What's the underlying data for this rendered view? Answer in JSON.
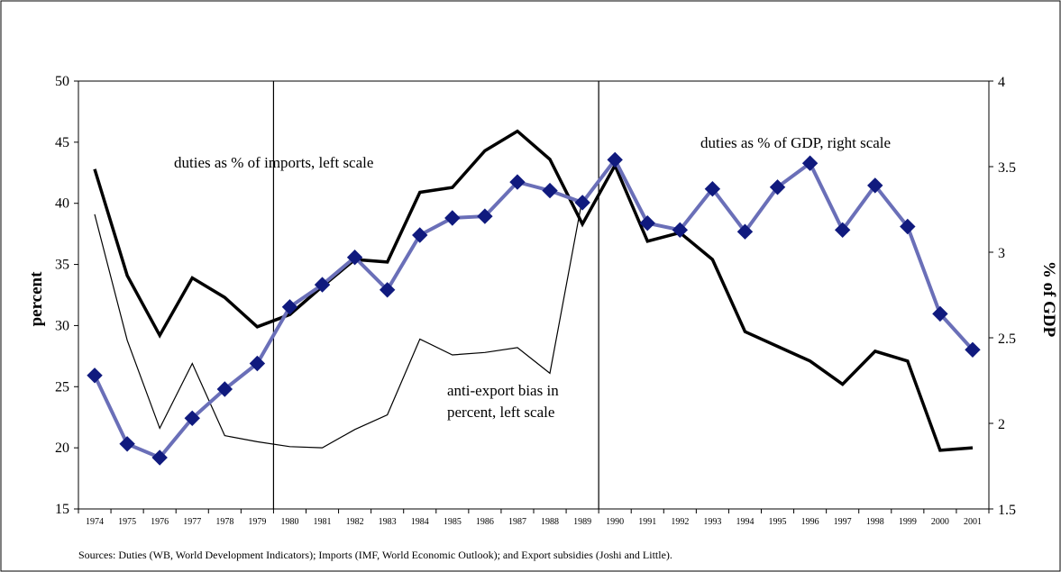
{
  "chart_data": {
    "type": "line",
    "categories": [
      "1974",
      "1975",
      "1976",
      "1977",
      "1978",
      "1979",
      "1980",
      "1981",
      "1982",
      "1983",
      "1984",
      "1985",
      "1986",
      "1987",
      "1988",
      "1989",
      "1990",
      "1991",
      "1992",
      "1993",
      "1994",
      "1995",
      "1996",
      "1997",
      "1998",
      "1999",
      "2000",
      "2001"
    ],
    "series": [
      {
        "axis": "left",
        "style": "thick-black",
        "values": [
          42.8,
          34.1,
          29.2,
          33.9,
          32.3,
          29.9,
          30.9,
          33.2,
          35.4,
          35.2,
          40.9,
          41.3,
          44.3,
          45.9,
          43.6,
          38.3,
          43.1,
          36.9,
          37.6,
          35.4,
          29.5,
          28.3,
          27.1,
          25.2,
          27.9,
          27.1,
          19.8,
          20.0
        ]
      },
      {
        "axis": "left",
        "style": "thin-black",
        "values": [
          39.1,
          28.8,
          21.6,
          26.9,
          21.0,
          20.5,
          20.1,
          20.0,
          21.5,
          22.7,
          28.9,
          27.6,
          27.8,
          28.2,
          26.1,
          40.4,
          null,
          null,
          null,
          null,
          null,
          null,
          null,
          null,
          null,
          null,
          null,
          null
        ]
      },
      {
        "axis": "right",
        "style": "blue-diamond",
        "values": [
          2.28,
          1.88,
          1.8,
          2.03,
          2.2,
          2.35,
          2.68,
          2.81,
          2.97,
          2.78,
          3.1,
          3.2,
          3.21,
          3.41,
          3.36,
          3.29,
          3.54,
          3.17,
          3.13,
          3.37,
          3.12,
          3.38,
          3.52,
          3.13,
          3.39,
          3.15,
          2.64,
          2.43
        ]
      }
    ],
    "ylim_left": [
      15,
      50
    ],
    "yticks_left": [
      "15",
      "20",
      "25",
      "30",
      "35",
      "40",
      "45",
      "50"
    ],
    "ylim_right": [
      1.5,
      4
    ],
    "yticks_right": [
      "1.5",
      "2",
      "2.5",
      "3",
      "3.5",
      "4"
    ],
    "ylabel_left": "percent",
    "ylabel_right": "% of GDP",
    "vertical_markers": [
      "1979",
      "1989"
    ],
    "grid": false,
    "colors": {
      "thick": "#000000",
      "thin": "#000000",
      "blue": "#6a6fb8",
      "diamond": "#101a7e"
    }
  },
  "annotations": {
    "duties_imports": "duties as % of imports, left scale",
    "duties_gdp": "duties as % of GDP, right scale",
    "anti_export_1": "anti-export bias in",
    "anti_export_2": "percent, left scale"
  },
  "source": "Sources: Duties (WB, World Development Indicators); Imports (IMF, World Economic Outlook); and Export subsidies (Joshi and Little)."
}
